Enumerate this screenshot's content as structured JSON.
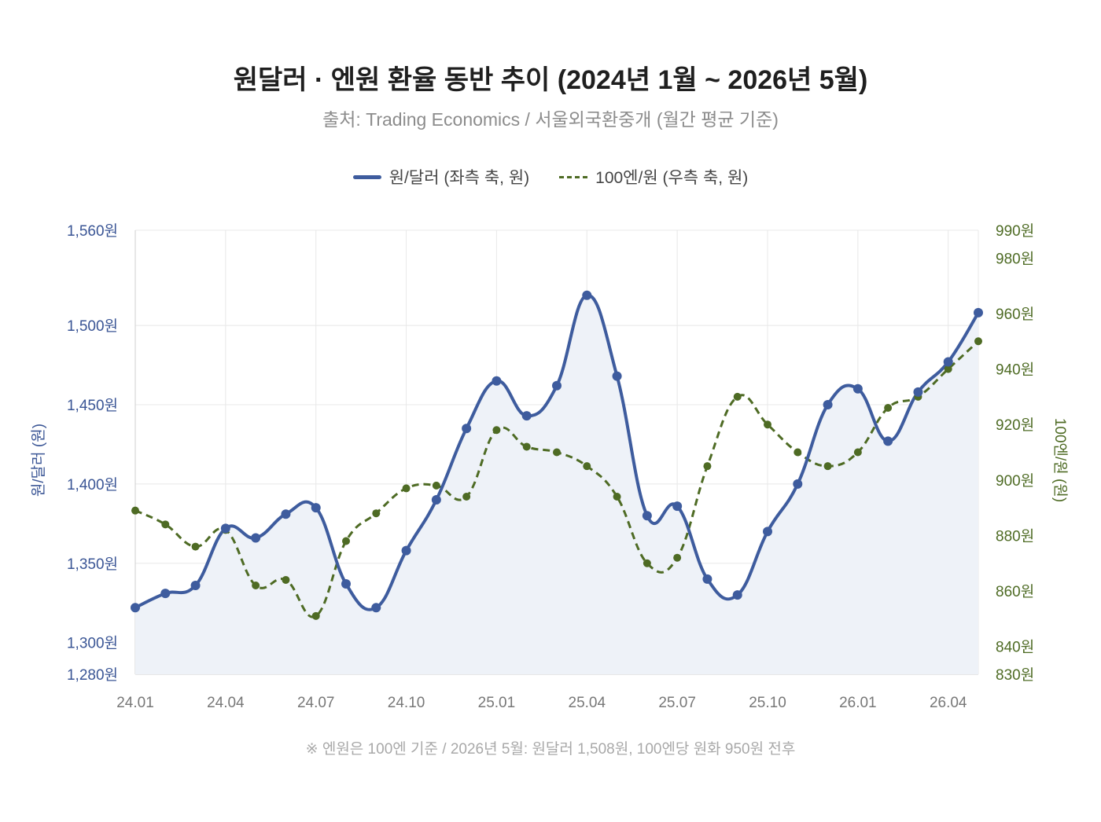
{
  "chart_data": {
    "type": "line",
    "title": "원달러 · 엔원 환율 동반 추이 (2024년 1월 ~ 2026년 5월)",
    "subtitle": "출처: Trading Economics / 서울외국환중개 (월간 평균 기준)",
    "footnote": "※ 엔원은 100엔 기준 / 2026년 5월: 원달러 1,508원, 100엔당 원화 950원 전후",
    "ylabel_left": "원/달러 (원)",
    "ylabel_right": "100엔/원 (원)",
    "ylim_left": [
      1280,
      1560
    ],
    "ylim_right": [
      830,
      990
    ],
    "yticks_left": [
      "1,280원",
      "1,300원",
      "1,350원",
      "1,400원",
      "1,450원",
      "1,500원",
      "1,560원"
    ],
    "yticks_left_values": [
      1280,
      1300,
      1350,
      1400,
      1450,
      1500,
      1560
    ],
    "yticks_right": [
      "830원",
      "840원",
      "860원",
      "880원",
      "900원",
      "920원",
      "940원",
      "960원",
      "980원",
      "990원"
    ],
    "yticks_right_values": [
      830,
      840,
      860,
      880,
      900,
      920,
      940,
      960,
      980,
      990
    ],
    "x_tick_labels": [
      "24.01",
      "24.04",
      "24.07",
      "24.10",
      "25.01",
      "25.04",
      "25.07",
      "25.10",
      "26.01",
      "26.04"
    ],
    "x_tick_indices": [
      0,
      3,
      6,
      9,
      12,
      15,
      18,
      21,
      24,
      27
    ],
    "x": [
      "24.01",
      "24.02",
      "24.03",
      "24.04",
      "24.05",
      "24.06",
      "24.07",
      "24.08",
      "24.09",
      "24.10",
      "24.11",
      "24.12",
      "25.01",
      "25.02",
      "25.03",
      "25.04",
      "25.05",
      "25.06",
      "25.07",
      "25.08",
      "25.09",
      "25.10",
      "25.11",
      "25.12",
      "26.01",
      "26.02",
      "26.03",
      "26.04",
      "26.05"
    ],
    "grid": true,
    "legend_position": "top-center",
    "series": [
      {
        "name": "원/달러 (좌측 축, 원)",
        "axis": "left",
        "style": "solid",
        "color": "#3e5c9e",
        "fill": "#eef2f8",
        "values": [
          1322,
          1331,
          1336,
          1372,
          1366,
          1381,
          1385,
          1337,
          1322,
          1358,
          1390,
          1435,
          1465,
          1443,
          1462,
          1519,
          1468,
          1380,
          1386,
          1340,
          1330,
          1370,
          1400,
          1450,
          1460,
          1427,
          1458,
          1477,
          1508
        ]
      },
      {
        "name": "100엔/원 (우측 축, 원)",
        "axis": "right",
        "style": "dashed",
        "color": "#4e6b24",
        "values": [
          889,
          884,
          876,
          882,
          862,
          864,
          851,
          878,
          888,
          897,
          898,
          894,
          918,
          912,
          910,
          905,
          894,
          870,
          872,
          905,
          930,
          920,
          910,
          905,
          910,
          926,
          930,
          940,
          950
        ]
      }
    ]
  }
}
